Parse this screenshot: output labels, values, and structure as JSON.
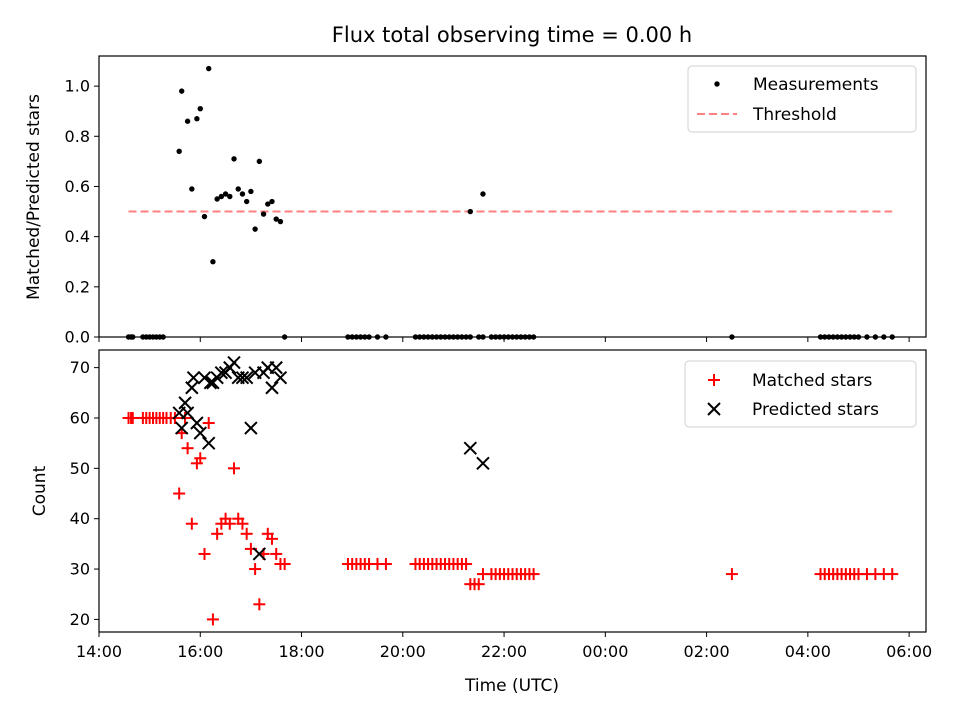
{
  "chart_data": [
    {
      "type": "scatter",
      "title": "Flux total observing time = 0.00 h",
      "xlabel": "",
      "ylabel": "Matched/Predicted stars",
      "xlim": [
        "14:00",
        "06:20"
      ],
      "ylim": [
        0,
        1.12
      ],
      "yticks": [
        "0.0",
        "0.2",
        "0.4",
        "0.6",
        "0.8",
        "1.0"
      ],
      "legend": {
        "placement": "top-right",
        "entries": [
          "Measurements",
          "Threshold"
        ]
      },
      "series": [
        {
          "name": "Measurements",
          "color": "#000000",
          "marker": "dot",
          "points": [
            [
              "14:35",
              0
            ],
            [
              "14:38",
              0
            ],
            [
              "14:40",
              0
            ],
            [
              "14:52",
              0
            ],
            [
              "14:56",
              0
            ],
            [
              "15:00",
              0
            ],
            [
              "15:04",
              0
            ],
            [
              "15:08",
              0
            ],
            [
              "15:12",
              0
            ],
            [
              "15:16",
              0
            ],
            [
              "15:35",
              0.74
            ],
            [
              "15:38",
              0.98
            ],
            [
              "15:45",
              0.86
            ],
            [
              "15:50",
              0.59
            ],
            [
              "15:56",
              0.87
            ],
            [
              "16:00",
              0.91
            ],
            [
              "16:05",
              0.48
            ],
            [
              "16:10",
              1.07
            ],
            [
              "16:15",
              0.3
            ],
            [
              "16:20",
              0.55
            ],
            [
              "16:25",
              0.56
            ],
            [
              "16:30",
              0.57
            ],
            [
              "16:35",
              0.56
            ],
            [
              "16:40",
              0.71
            ],
            [
              "16:45",
              0.59
            ],
            [
              "16:50",
              0.57
            ],
            [
              "16:55",
              0.54
            ],
            [
              "17:00",
              0.58
            ],
            [
              "17:05",
              0.43
            ],
            [
              "17:10",
              0.7
            ],
            [
              "17:15",
              0.49
            ],
            [
              "17:20",
              0.53
            ],
            [
              "17:25",
              0.54
            ],
            [
              "17:30",
              0.47
            ],
            [
              "17:35",
              0.46
            ],
            [
              "17:40",
              0
            ],
            [
              "18:55",
              0
            ],
            [
              "19:00",
              0
            ],
            [
              "19:05",
              0
            ],
            [
              "19:10",
              0
            ],
            [
              "19:15",
              0
            ],
            [
              "19:20",
              0
            ],
            [
              "19:30",
              0
            ],
            [
              "19:40",
              0
            ],
            [
              "20:15",
              0
            ],
            [
              "20:20",
              0
            ],
            [
              "20:25",
              0
            ],
            [
              "20:30",
              0
            ],
            [
              "20:35",
              0
            ],
            [
              "20:40",
              0
            ],
            [
              "20:45",
              0
            ],
            [
              "20:50",
              0
            ],
            [
              "20:55",
              0
            ],
            [
              "21:00",
              0
            ],
            [
              "21:05",
              0
            ],
            [
              "21:10",
              0
            ],
            [
              "21:15",
              0
            ],
            [
              "21:20",
              0
            ],
            [
              "21:20",
              0.5
            ],
            [
              "21:35",
              0.57
            ],
            [
              "21:30",
              0
            ],
            [
              "21:35",
              0
            ],
            [
              "21:45",
              0
            ],
            [
              "21:50",
              0
            ],
            [
              "21:55",
              0
            ],
            [
              "22:00",
              0
            ],
            [
              "22:05",
              0
            ],
            [
              "22:10",
              0
            ],
            [
              "22:15",
              0
            ],
            [
              "22:20",
              0
            ],
            [
              "22:25",
              0
            ],
            [
              "22:30",
              0
            ],
            [
              "22:35",
              0
            ],
            [
              "02:30",
              0
            ],
            [
              "04:15",
              0
            ],
            [
              "04:20",
              0
            ],
            [
              "04:25",
              0
            ],
            [
              "04:30",
              0
            ],
            [
              "04:35",
              0
            ],
            [
              "04:40",
              0
            ],
            [
              "04:45",
              0
            ],
            [
              "04:50",
              0
            ],
            [
              "04:55",
              0
            ],
            [
              "05:00",
              0
            ],
            [
              "05:10",
              0
            ],
            [
              "05:20",
              0
            ],
            [
              "05:30",
              0
            ],
            [
              "05:40",
              0
            ]
          ]
        },
        {
          "name": "Threshold",
          "color": "#ff8080",
          "style": "dashed",
          "points": [
            [
              "14:35",
              0.5
            ],
            [
              "05:40",
              0.5
            ]
          ]
        }
      ]
    },
    {
      "type": "scatter",
      "title": "",
      "xlabel": "Time (UTC)",
      "ylabel": "Count",
      "xlim": [
        "14:00",
        "06:20"
      ],
      "ylim": [
        17.5,
        73.5
      ],
      "yticks": [
        "20",
        "30",
        "40",
        "50",
        "60",
        "70"
      ],
      "xticks": [
        "14:00",
        "16:00",
        "18:00",
        "20:00",
        "22:00",
        "00:00",
        "02:00",
        "04:00",
        "06:00"
      ],
      "legend": {
        "placement": "top-right",
        "entries": [
          "Matched stars",
          "Predicted stars"
        ]
      },
      "series": [
        {
          "name": "Matched stars",
          "color": "#ff0000",
          "marker": "plus",
          "points": [
            [
              "14:35",
              60
            ],
            [
              "14:38",
              60
            ],
            [
              "14:40",
              60
            ],
            [
              "14:52",
              60
            ],
            [
              "14:56",
              60
            ],
            [
              "15:00",
              60
            ],
            [
              "15:04",
              60
            ],
            [
              "15:08",
              60
            ],
            [
              "15:12",
              60
            ],
            [
              "15:16",
              60
            ],
            [
              "15:20",
              60
            ],
            [
              "15:25",
              60
            ],
            [
              "15:30",
              60
            ],
            [
              "15:35",
              45
            ],
            [
              "15:38",
              57
            ],
            [
              "15:42",
              60
            ],
            [
              "15:45",
              54
            ],
            [
              "15:50",
              39
            ],
            [
              "15:56",
              51
            ],
            [
              "16:00",
              52
            ],
            [
              "16:05",
              33
            ],
            [
              "16:10",
              59
            ],
            [
              "16:15",
              20
            ],
            [
              "16:20",
              37
            ],
            [
              "16:25",
              39
            ],
            [
              "16:30",
              40
            ],
            [
              "16:35",
              39
            ],
            [
              "16:40",
              50
            ],
            [
              "16:45",
              40
            ],
            [
              "16:50",
              39
            ],
            [
              "16:55",
              37
            ],
            [
              "17:00",
              34
            ],
            [
              "17:05",
              30
            ],
            [
              "17:10",
              23
            ],
            [
              "17:15",
              33
            ],
            [
              "17:20",
              37
            ],
            [
              "17:25",
              36
            ],
            [
              "17:30",
              33
            ],
            [
              "17:35",
              31
            ],
            [
              "17:40",
              31
            ],
            [
              "18:55",
              31
            ],
            [
              "19:00",
              31
            ],
            [
              "19:05",
              31
            ],
            [
              "19:10",
              31
            ],
            [
              "19:15",
              31
            ],
            [
              "19:20",
              31
            ],
            [
              "19:30",
              31
            ],
            [
              "19:40",
              31
            ],
            [
              "20:15",
              31
            ],
            [
              "20:20",
              31
            ],
            [
              "20:25",
              31
            ],
            [
              "20:30",
              31
            ],
            [
              "20:35",
              31
            ],
            [
              "20:40",
              31
            ],
            [
              "20:45",
              31
            ],
            [
              "20:50",
              31
            ],
            [
              "20:55",
              31
            ],
            [
              "21:00",
              31
            ],
            [
              "21:05",
              31
            ],
            [
              "21:10",
              31
            ],
            [
              "21:15",
              31
            ],
            [
              "21:20",
              27
            ],
            [
              "21:25",
              27
            ],
            [
              "21:30",
              27
            ],
            [
              "21:35",
              29
            ],
            [
              "21:45",
              29
            ],
            [
              "21:50",
              29
            ],
            [
              "21:55",
              29
            ],
            [
              "22:00",
              29
            ],
            [
              "22:05",
              29
            ],
            [
              "22:10",
              29
            ],
            [
              "22:15",
              29
            ],
            [
              "22:20",
              29
            ],
            [
              "22:25",
              29
            ],
            [
              "22:30",
              29
            ],
            [
              "22:35",
              29
            ],
            [
              "02:30",
              29
            ],
            [
              "04:15",
              29
            ],
            [
              "04:20",
              29
            ],
            [
              "04:25",
              29
            ],
            [
              "04:30",
              29
            ],
            [
              "04:35",
              29
            ],
            [
              "04:40",
              29
            ],
            [
              "04:45",
              29
            ],
            [
              "04:50",
              29
            ],
            [
              "04:55",
              29
            ],
            [
              "05:00",
              29
            ],
            [
              "05:10",
              29
            ],
            [
              "05:20",
              29
            ],
            [
              "05:30",
              29
            ],
            [
              "05:40",
              29
            ]
          ]
        },
        {
          "name": "Predicted stars",
          "color": "#000000",
          "marker": "x",
          "points": [
            [
              "15:35",
              61
            ],
            [
              "15:38",
              58
            ],
            [
              "15:42",
              63
            ],
            [
              "15:45",
              61
            ],
            [
              "15:50",
              66
            ],
            [
              "15:52",
              68
            ],
            [
              "15:56",
              59
            ],
            [
              "16:00",
              57
            ],
            [
              "16:05",
              68
            ],
            [
              "16:10",
              55
            ],
            [
              "16:12",
              67
            ],
            [
              "16:15",
              67
            ],
            [
              "16:20",
              68
            ],
            [
              "16:25",
              69
            ],
            [
              "16:30",
              69
            ],
            [
              "16:35",
              70
            ],
            [
              "16:40",
              71
            ],
            [
              "16:45",
              68
            ],
            [
              "16:50",
              68
            ],
            [
              "16:55",
              68
            ],
            [
              "17:00",
              58
            ],
            [
              "17:05",
              69
            ],
            [
              "17:10",
              33
            ],
            [
              "17:15",
              69
            ],
            [
              "17:20",
              70
            ],
            [
              "17:25",
              66
            ],
            [
              "17:30",
              70
            ],
            [
              "17:35",
              68
            ],
            [
              "21:20",
              54
            ],
            [
              "21:35",
              51
            ]
          ]
        }
      ]
    }
  ]
}
